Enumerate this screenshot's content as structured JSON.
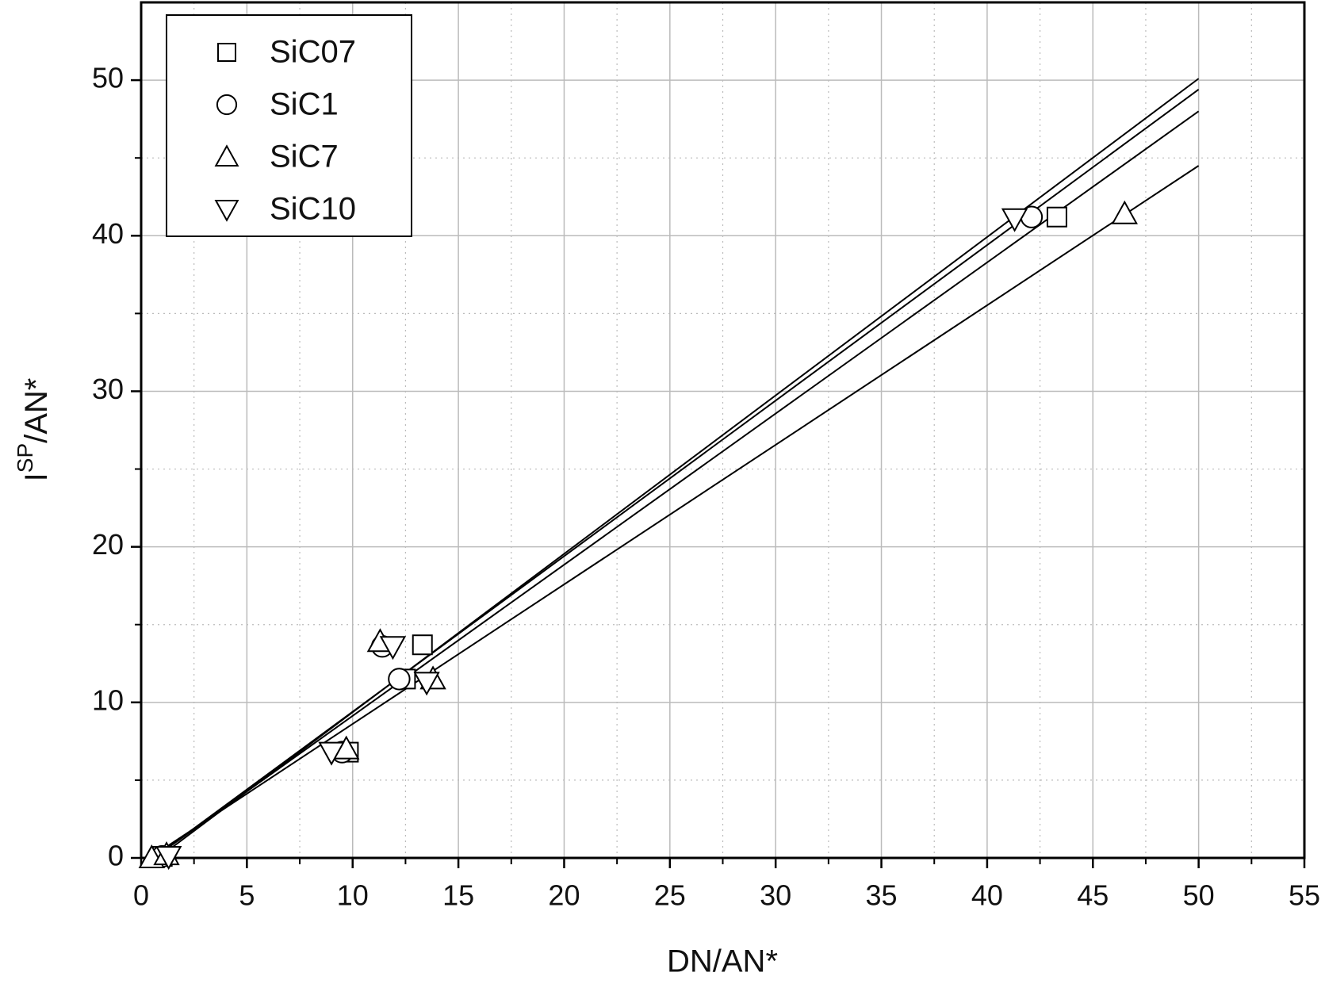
{
  "chart_data": {
    "type": "scatter",
    "xlabel": "DN/AN*",
    "ylabel": {
      "base": "I",
      "superscript": "SP",
      "suffix": "/AN*"
    },
    "xlim": [
      0,
      55
    ],
    "xticks": [
      0,
      5,
      10,
      15,
      20,
      25,
      30,
      35,
      40,
      45,
      50,
      55
    ],
    "ylim": [
      0,
      55
    ],
    "yticks": [
      0,
      10,
      20,
      30,
      40,
      50
    ],
    "grid": true,
    "legend": "upper left",
    "series": [
      {
        "name": "SiC07",
        "marker": "square",
        "color": "#000000",
        "x": [
          1,
          9.8,
          12.5,
          13.3,
          43.3
        ],
        "values": [
          0.1,
          6.8,
          11.5,
          13.7,
          41.2
        ],
        "fit": {
          "x": [
            0.6,
            50
          ],
          "values": [
            0,
            48.0
          ]
        }
      },
      {
        "name": "SiC1",
        "marker": "circle",
        "color": "#000000",
        "x": [
          1,
          9.5,
          11.4,
          12.2,
          42.1
        ],
        "values": [
          0.1,
          6.8,
          13.6,
          11.5,
          41.2
        ],
        "fit": {
          "x": [
            0.6,
            50
          ],
          "values": [
            0,
            49.4
          ]
        }
      },
      {
        "name": "SiC7",
        "marker": "triangle-up",
        "color": "#000000",
        "x": [
          0.5,
          1.2,
          9.7,
          11.3,
          13.8,
          46.5
        ],
        "values": [
          0,
          0.2,
          7.0,
          13.9,
          11.5,
          41.4
        ],
        "fit": {
          "x": [
            0.4,
            50
          ],
          "values": [
            0,
            44.5
          ]
        }
      },
      {
        "name": "SiC10",
        "marker": "triangle-down",
        "color": "#000000",
        "x": [
          1.3,
          9.0,
          11.9,
          13.5,
          41.3
        ],
        "values": [
          0.1,
          6.8,
          13.6,
          11.3,
          41.1
        ],
        "fit": {
          "x": [
            0.8,
            50
          ],
          "values": [
            0,
            50.1
          ]
        }
      }
    ]
  }
}
